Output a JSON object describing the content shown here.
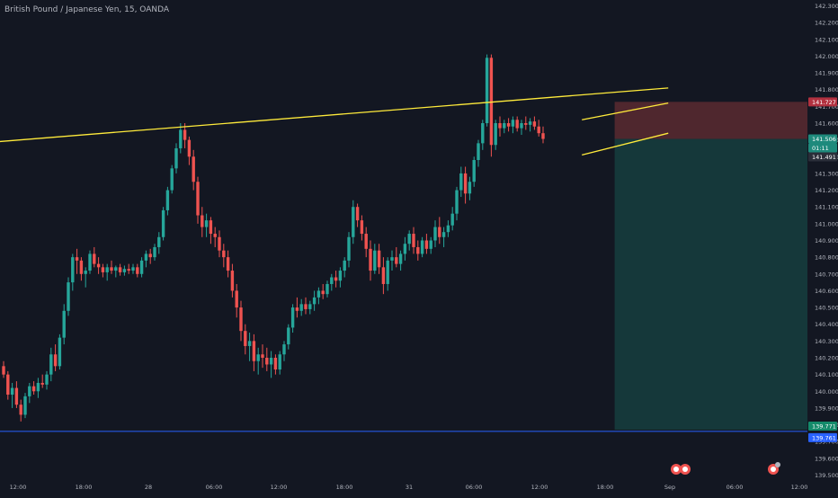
{
  "header": {
    "symbol_title": "British Pound / Japanese Yen, 15, OANDA"
  },
  "badges": {
    "stop": "141.727",
    "last": "141.506",
    "countdown": "01:11",
    "prev": "141.491",
    "target": "139.771",
    "bid": "139.761"
  },
  "chart_data": {
    "type": "candlestick",
    "title": "British Pound / Japanese Yen, 15, OANDA",
    "ylim": [
      139.45,
      142.35
    ],
    "y_ticks": [
      "142.300",
      "142.200",
      "142.100",
      "142.000",
      "141.900",
      "141.800",
      "141.700",
      "141.600",
      "141.500",
      "141.400",
      "141.300",
      "141.200",
      "141.100",
      "141.000",
      "140.900",
      "140.800",
      "140.700",
      "140.600",
      "140.500",
      "140.400",
      "140.300",
      "140.200",
      "140.100",
      "140.000",
      "139.900",
      "139.800",
      "139.700",
      "139.600",
      "139.500"
    ],
    "x_ticks": [
      "12:00",
      "18:00",
      "28",
      "06:00",
      "12:00",
      "18:00",
      "31",
      "06:00",
      "12:00",
      "18:00",
      "Sep",
      "06:00",
      "12:00"
    ],
    "grid": false,
    "legend": "none",
    "candles_ohlc": [
      [
        140.15,
        140.18,
        140.08,
        140.1
      ],
      [
        140.1,
        140.12,
        139.95,
        139.98
      ],
      [
        139.98,
        140.05,
        139.9,
        140.02
      ],
      [
        140.02,
        140.06,
        139.9,
        139.92
      ],
      [
        139.92,
        139.95,
        139.82,
        139.86
      ],
      [
        139.86,
        139.99,
        139.84,
        139.97
      ],
      [
        139.97,
        140.05,
        139.93,
        140.03
      ],
      [
        140.03,
        140.06,
        139.98,
        140.0
      ],
      [
        140.0,
        140.08,
        139.96,
        140.05
      ],
      [
        140.05,
        140.1,
        140.02,
        140.04
      ],
      [
        140.04,
        140.12,
        140.01,
        140.1
      ],
      [
        140.1,
        140.26,
        140.06,
        140.22
      ],
      [
        140.22,
        140.28,
        140.12,
        140.15
      ],
      [
        140.15,
        140.34,
        140.13,
        140.32
      ],
      [
        140.32,
        140.52,
        140.28,
        140.48
      ],
      [
        140.48,
        140.68,
        140.45,
        140.65
      ],
      [
        140.65,
        140.82,
        140.6,
        140.8
      ],
      [
        140.8,
        140.85,
        140.7,
        140.78
      ],
      [
        140.78,
        140.8,
        140.66,
        140.7
      ],
      [
        140.7,
        140.74,
        140.62,
        140.72
      ],
      [
        140.72,
        140.84,
        140.7,
        140.82
      ],
      [
        140.82,
        140.86,
        140.74,
        140.76
      ],
      [
        140.76,
        140.8,
        140.7,
        140.74
      ],
      [
        140.74,
        140.76,
        140.68,
        140.71
      ],
      [
        140.71,
        140.76,
        140.66,
        140.74
      ],
      [
        140.74,
        140.78,
        140.7,
        140.72
      ],
      [
        140.72,
        140.75,
        140.68,
        140.74
      ],
      [
        140.74,
        140.76,
        140.69,
        140.71
      ],
      [
        140.71,
        140.75,
        140.69,
        140.73
      ],
      [
        140.73,
        140.76,
        140.7,
        140.72
      ],
      [
        140.72,
        140.76,
        140.7,
        140.74
      ],
      [
        140.74,
        140.76,
        140.68,
        140.7
      ],
      [
        140.7,
        140.8,
        140.68,
        140.78
      ],
      [
        140.78,
        140.84,
        140.74,
        140.82
      ],
      [
        140.82,
        140.85,
        140.76,
        140.8
      ],
      [
        140.8,
        140.88,
        140.78,
        140.86
      ],
      [
        140.86,
        140.95,
        140.82,
        140.92
      ],
      [
        140.92,
        141.1,
        140.9,
        141.08
      ],
      [
        141.08,
        141.22,
        141.05,
        141.2
      ],
      [
        141.2,
        141.35,
        141.18,
        141.33
      ],
      [
        141.33,
        141.48,
        141.3,
        141.45
      ],
      [
        141.45,
        141.6,
        141.42,
        141.56
      ],
      [
        141.56,
        141.6,
        141.45,
        141.5
      ],
      [
        141.5,
        141.52,
        141.35,
        141.4
      ],
      [
        141.4,
        141.44,
        141.2,
        141.25
      ],
      [
        141.25,
        141.28,
        141.0,
        141.05
      ],
      [
        141.05,
        141.1,
        140.92,
        140.98
      ],
      [
        140.98,
        141.06,
        140.92,
        141.02
      ],
      [
        141.02,
        141.04,
        140.88,
        140.94
      ],
      [
        140.94,
        140.98,
        140.86,
        140.92
      ],
      [
        140.92,
        140.96,
        140.8,
        140.84
      ],
      [
        140.84,
        140.88,
        140.74,
        140.8
      ],
      [
        140.8,
        140.84,
        140.68,
        140.72
      ],
      [
        140.72,
        140.76,
        140.56,
        140.6
      ],
      [
        140.6,
        140.64,
        140.44,
        140.5
      ],
      [
        140.5,
        140.54,
        140.3,
        140.36
      ],
      [
        140.36,
        140.4,
        140.22,
        140.27
      ],
      [
        140.27,
        140.35,
        140.18,
        140.3
      ],
      [
        140.3,
        140.34,
        140.12,
        140.18
      ],
      [
        140.18,
        140.26,
        140.1,
        140.22
      ],
      [
        140.22,
        140.28,
        140.14,
        140.2
      ],
      [
        140.2,
        140.26,
        140.12,
        140.16
      ],
      [
        140.16,
        140.24,
        140.08,
        140.2
      ],
      [
        140.2,
        140.22,
        140.1,
        140.13
      ],
      [
        140.13,
        140.24,
        140.1,
        140.22
      ],
      [
        140.22,
        140.3,
        140.18,
        140.28
      ],
      [
        140.28,
        140.4,
        140.25,
        140.38
      ],
      [
        140.38,
        140.52,
        140.35,
        140.5
      ],
      [
        140.5,
        140.56,
        140.44,
        140.48
      ],
      [
        140.48,
        140.55,
        140.45,
        140.52
      ],
      [
        140.52,
        140.56,
        140.46,
        140.49
      ],
      [
        140.49,
        140.54,
        140.46,
        140.52
      ],
      [
        140.52,
        140.6,
        140.48,
        140.56
      ],
      [
        140.56,
        140.62,
        140.52,
        140.6
      ],
      [
        140.6,
        140.64,
        140.55,
        140.58
      ],
      [
        140.58,
        140.66,
        140.56,
        140.64
      ],
      [
        140.64,
        140.7,
        140.6,
        140.68
      ],
      [
        140.68,
        140.72,
        140.62,
        140.66
      ],
      [
        140.66,
        140.74,
        140.62,
        140.72
      ],
      [
        140.72,
        140.8,
        140.68,
        140.78
      ],
      [
        140.78,
        140.95,
        140.74,
        140.92
      ],
      [
        140.92,
        141.14,
        140.88,
        141.1
      ],
      [
        141.1,
        141.12,
        140.98,
        141.02
      ],
      [
        141.02,
        141.05,
        140.9,
        140.94
      ],
      [
        140.94,
        140.98,
        140.8,
        140.85
      ],
      [
        140.85,
        140.9,
        140.66,
        140.72
      ],
      [
        140.72,
        140.88,
        140.7,
        140.84
      ],
      [
        140.84,
        140.88,
        140.7,
        140.74
      ],
      [
        140.74,
        140.8,
        140.58,
        140.64
      ],
      [
        140.64,
        140.8,
        140.6,
        140.78
      ],
      [
        140.78,
        140.84,
        140.72,
        140.8
      ],
      [
        140.8,
        140.86,
        140.74,
        140.76
      ],
      [
        140.76,
        140.84,
        140.72,
        140.82
      ],
      [
        140.82,
        140.92,
        140.78,
        140.88
      ],
      [
        140.88,
        140.96,
        140.84,
        140.94
      ],
      [
        140.94,
        140.98,
        140.82,
        140.86
      ],
      [
        140.86,
        140.9,
        140.78,
        140.82
      ],
      [
        140.82,
        140.92,
        140.8,
        140.9
      ],
      [
        140.9,
        140.94,
        140.82,
        140.85
      ],
      [
        140.85,
        140.92,
        140.82,
        140.9
      ],
      [
        140.9,
        141.02,
        140.86,
        140.98
      ],
      [
        140.98,
        141.04,
        140.88,
        140.92
      ],
      [
        140.92,
        140.98,
        140.86,
        140.95
      ],
      [
        140.95,
        141.02,
        140.92,
        140.99
      ],
      [
        140.99,
        141.1,
        140.96,
        141.06
      ],
      [
        141.06,
        141.22,
        141.02,
        141.2
      ],
      [
        141.2,
        141.34,
        141.16,
        141.3
      ],
      [
        141.3,
        141.34,
        141.12,
        141.18
      ],
      [
        141.18,
        141.28,
        141.14,
        141.25
      ],
      [
        141.25,
        141.4,
        141.22,
        141.38
      ],
      [
        141.38,
        141.5,
        141.34,
        141.48
      ],
      [
        141.48,
        141.62,
        141.44,
        141.6
      ],
      [
        141.6,
        142.01,
        141.58,
        141.99
      ],
      [
        141.99,
        142.01,
        141.4,
        141.47
      ],
      [
        141.47,
        141.62,
        141.44,
        141.6
      ],
      [
        141.6,
        141.64,
        141.52,
        141.57
      ],
      [
        141.57,
        141.62,
        141.54,
        141.6
      ],
      [
        141.6,
        141.63,
        141.55,
        141.58
      ],
      [
        141.58,
        141.64,
        141.54,
        141.62
      ],
      [
        141.62,
        141.64,
        141.55,
        141.57
      ],
      [
        141.57,
        141.62,
        141.53,
        141.6
      ],
      [
        141.6,
        141.64,
        141.56,
        141.59
      ],
      [
        141.59,
        141.63,
        141.55,
        141.61
      ],
      [
        141.61,
        141.64,
        141.56,
        141.58
      ],
      [
        141.58,
        141.62,
        141.52,
        141.54
      ],
      [
        141.54,
        141.58,
        141.48,
        141.506
      ]
    ],
    "drawings": {
      "upper_trendline": {
        "x_index": [
          -1,
          154
        ],
        "y": [
          141.49,
          141.81
        ]
      },
      "channel_upper": {
        "x_index": [
          134,
          154
        ],
        "y": [
          141.62,
          141.72
        ]
      },
      "channel_lower": {
        "x_index": [
          134,
          154
        ],
        "y": [
          141.41,
          141.54
        ]
      },
      "position": {
        "entry": 141.506,
        "stop": 141.727,
        "target": 139.771,
        "x_index_start": 142,
        "x_index_end": 154
      },
      "horizontal_line": {
        "y": 139.761
      }
    },
    "colors": {
      "up": "#26a69a",
      "down": "#ef5350",
      "trendline": "#ffeb3b",
      "stop_zone": "#5b2a30",
      "target_zone": "#163c3d",
      "hline": "#2962ff"
    }
  }
}
